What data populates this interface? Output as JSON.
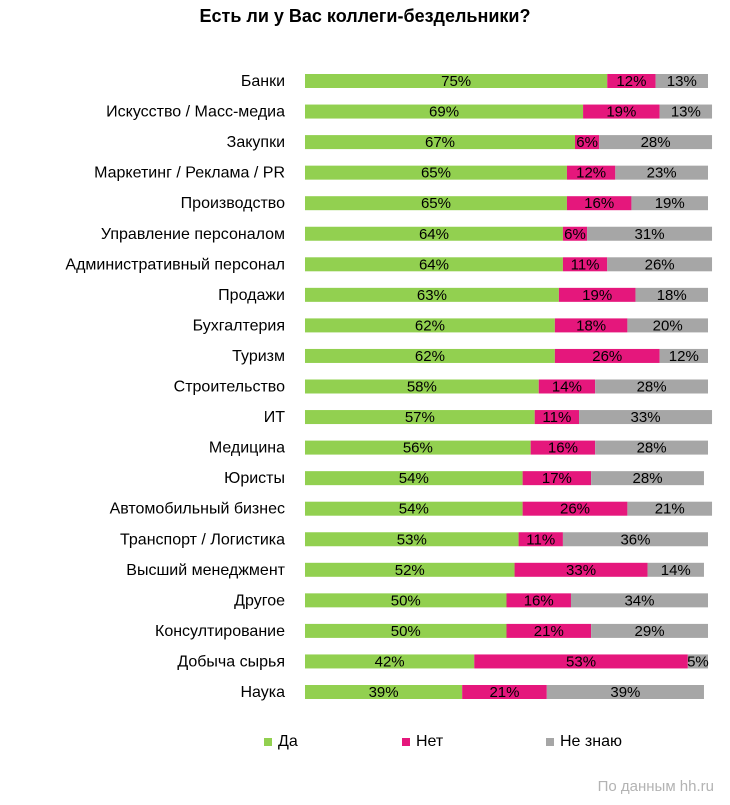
{
  "chart_data": {
    "type": "bar",
    "orientation": "horizontal",
    "stacked": true,
    "title": "Есть ли у Вас коллеги-бездельники?",
    "categories": [
      "Банки",
      "Искусство / Масс-медиа",
      "Закупки",
      "Маркетинг / Реклама / PR",
      "Производство",
      "Управление персоналом",
      "Административный персонал",
      "Продажи",
      "Бухгалтерия",
      "Туризм",
      "Строительство",
      "ИТ",
      "Медицина",
      "Юристы",
      "Автомобильный бизнес",
      "Транспорт / Логистика",
      "Высший менеджмент",
      "Другое",
      "Консултирование",
      "Добыча сырья",
      "Наука"
    ],
    "series": [
      {
        "name": "Да",
        "color": "#92d050",
        "values": [
          75,
          69,
          67,
          65,
          65,
          64,
          64,
          63,
          62,
          62,
          58,
          57,
          56,
          54,
          54,
          53,
          52,
          50,
          50,
          42,
          39
        ]
      },
      {
        "name": "Нет",
        "color": "#e5177c",
        "values": [
          12,
          19,
          6,
          12,
          16,
          6,
          11,
          19,
          18,
          26,
          14,
          11,
          16,
          17,
          26,
          11,
          33,
          16,
          21,
          53,
          21
        ]
      },
      {
        "name": "Не знаю",
        "color": "#a6a6a6",
        "values": [
          13,
          13,
          28,
          23,
          19,
          31,
          26,
          18,
          20,
          12,
          28,
          33,
          28,
          28,
          21,
          36,
          14,
          34,
          29,
          5,
          39
        ]
      }
    ],
    "value_suffix": "%",
    "xlim": [
      0,
      100
    ],
    "grid": false,
    "legend_position": "bottom",
    "source": "По данным  hh.ru"
  }
}
